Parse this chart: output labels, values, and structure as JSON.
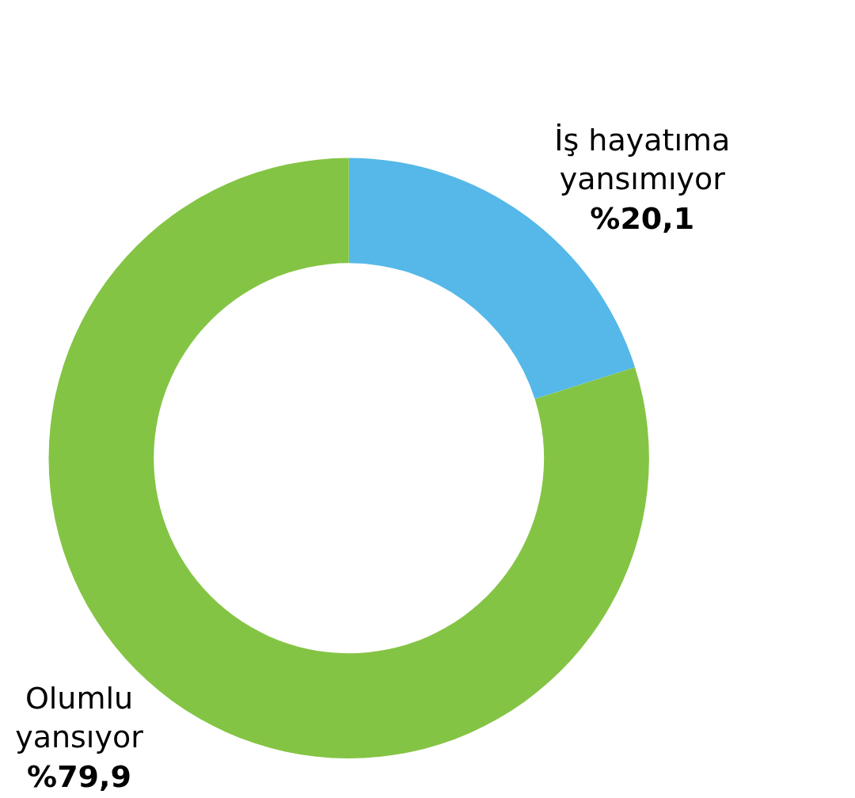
{
  "chart_data": {
    "type": "donut",
    "categories": [
      "İş hayatıma yansımıyor",
      "Olumlu yansıyor"
    ],
    "values": [
      20.1,
      79.9
    ],
    "value_labels": [
      "%20,1",
      "%79,9"
    ],
    "colors": [
      "#55b8e8",
      "#84c444"
    ],
    "legend": false
  }
}
